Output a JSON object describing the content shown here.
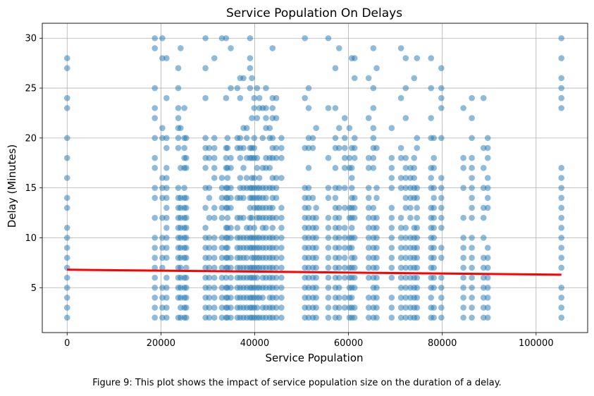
{
  "chart_data": {
    "type": "scatter",
    "title": "Service Population On Delays",
    "xlabel": "Service Population",
    "ylabel": "Delay (Minutes)",
    "xlim": [
      -5300,
      111000
    ],
    "ylim": [
      0.5,
      31.5
    ],
    "xticks": [
      0,
      20000,
      40000,
      60000,
      80000,
      100000
    ],
    "yticks": [
      5,
      10,
      15,
      20,
      25,
      30
    ],
    "grid": true,
    "point_color": "#1f77b4",
    "line_color": "#ff0000",
    "population_columns": [
      0,
      18700,
      20300,
      21200,
      23700,
      24200,
      25000,
      25400,
      29500,
      30300,
      31400,
      33000,
      33900,
      34200,
      34900,
      36300,
      36900,
      37600,
      38300,
      39000,
      39400,
      39900,
      40500,
      41000,
      41700,
      42400,
      43200,
      43800,
      44600,
      45700,
      50700,
      51500,
      52400,
      53100,
      55700,
      57200,
      58000,
      59200,
      60200,
      60700,
      61300,
      64300,
      65300,
      66000,
      69200,
      71200,
      72200,
      73200,
      74000,
      74600,
      77600,
      78200,
      79800,
      84500,
      86300,
      88800,
      89700,
      105400
    ],
    "regression_line": {
      "x": [
        0,
        105400
      ],
      "y": [
        6.8,
        6.3
      ]
    }
  },
  "caption": "Figure 9: This plot shows the impact of service population size on the duration of a delay."
}
